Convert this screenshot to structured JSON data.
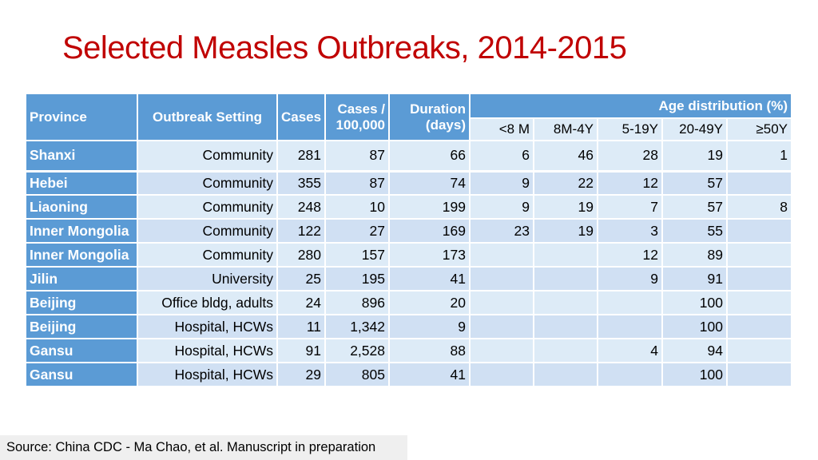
{
  "title": "Selected Measles Outbreaks, 2014-2015",
  "table": {
    "headers": {
      "province": "Province",
      "setting": "Outbreak Setting",
      "cases": "Cases",
      "rate_line1": "Cases /",
      "rate_line2": "100,000",
      "duration_line1": "Duration",
      "duration_line2": "(days)",
      "age_group": "Age distribution (%)",
      "age_bins": [
        "<8 M",
        "8M-4Y",
        "5-19Y",
        "20-49Y",
        "≥50Y"
      ]
    },
    "rows": [
      {
        "province": "Shanxi",
        "setting": "Community",
        "cases": "281",
        "rate": "87",
        "duration": "66",
        "a1": "6",
        "a2": "46",
        "a3": "28",
        "a4": "19",
        "a5": "1"
      },
      {
        "province": "Hebei",
        "setting": "Community",
        "cases": "355",
        "rate": "87",
        "duration": "74",
        "a1": "9",
        "a2": "22",
        "a3": "12",
        "a4": "57",
        "a5": ""
      },
      {
        "province": "Liaoning",
        "setting": "Community",
        "cases": "248",
        "rate": "10",
        "duration": "199",
        "a1": "9",
        "a2": "19",
        "a3": "7",
        "a4": "57",
        "a5": "8"
      },
      {
        "province": "Inner Mongolia",
        "setting": "Community",
        "cases": "122",
        "rate": "27",
        "duration": "169",
        "a1": "23",
        "a2": "19",
        "a3": "3",
        "a4": "55",
        "a5": ""
      },
      {
        "province": "Inner Mongolia",
        "setting": "Community",
        "cases": "280",
        "rate": "157",
        "duration": "173",
        "a1": "",
        "a2": "",
        "a3": "12",
        "a4": "89",
        "a5": ""
      },
      {
        "province": "Jilin",
        "setting": "University",
        "cases": "25",
        "rate": "195",
        "duration": "41",
        "a1": "",
        "a2": "",
        "a3": "9",
        "a4": "91",
        "a5": ""
      },
      {
        "province": "Beijing",
        "setting": "Office bldg, adults",
        "cases": "24",
        "rate": "896",
        "duration": "20",
        "a1": "",
        "a2": "",
        "a3": "",
        "a4": "100",
        "a5": ""
      },
      {
        "province": "Beijing",
        "setting": "Hospital, HCWs",
        "cases": "11",
        "rate": "1,342",
        "duration": "9",
        "a1": "",
        "a2": "",
        "a3": "",
        "a4": "100",
        "a5": ""
      },
      {
        "province": "Gansu",
        "setting": "Hospital, HCWs",
        "cases": "91",
        "rate": "2,528",
        "duration": "88",
        "a1": "",
        "a2": "",
        "a3": "4",
        "a4": "94",
        "a5": ""
      },
      {
        "province": "Gansu",
        "setting": "Hospital, HCWs",
        "cases": "29",
        "rate": "805",
        "duration": "41",
        "a1": "",
        "a2": "",
        "a3": "",
        "a4": "100",
        "a5": ""
      }
    ]
  },
  "source": "Source: China CDC - Ma Chao, et al.  Manuscript in preparation"
}
